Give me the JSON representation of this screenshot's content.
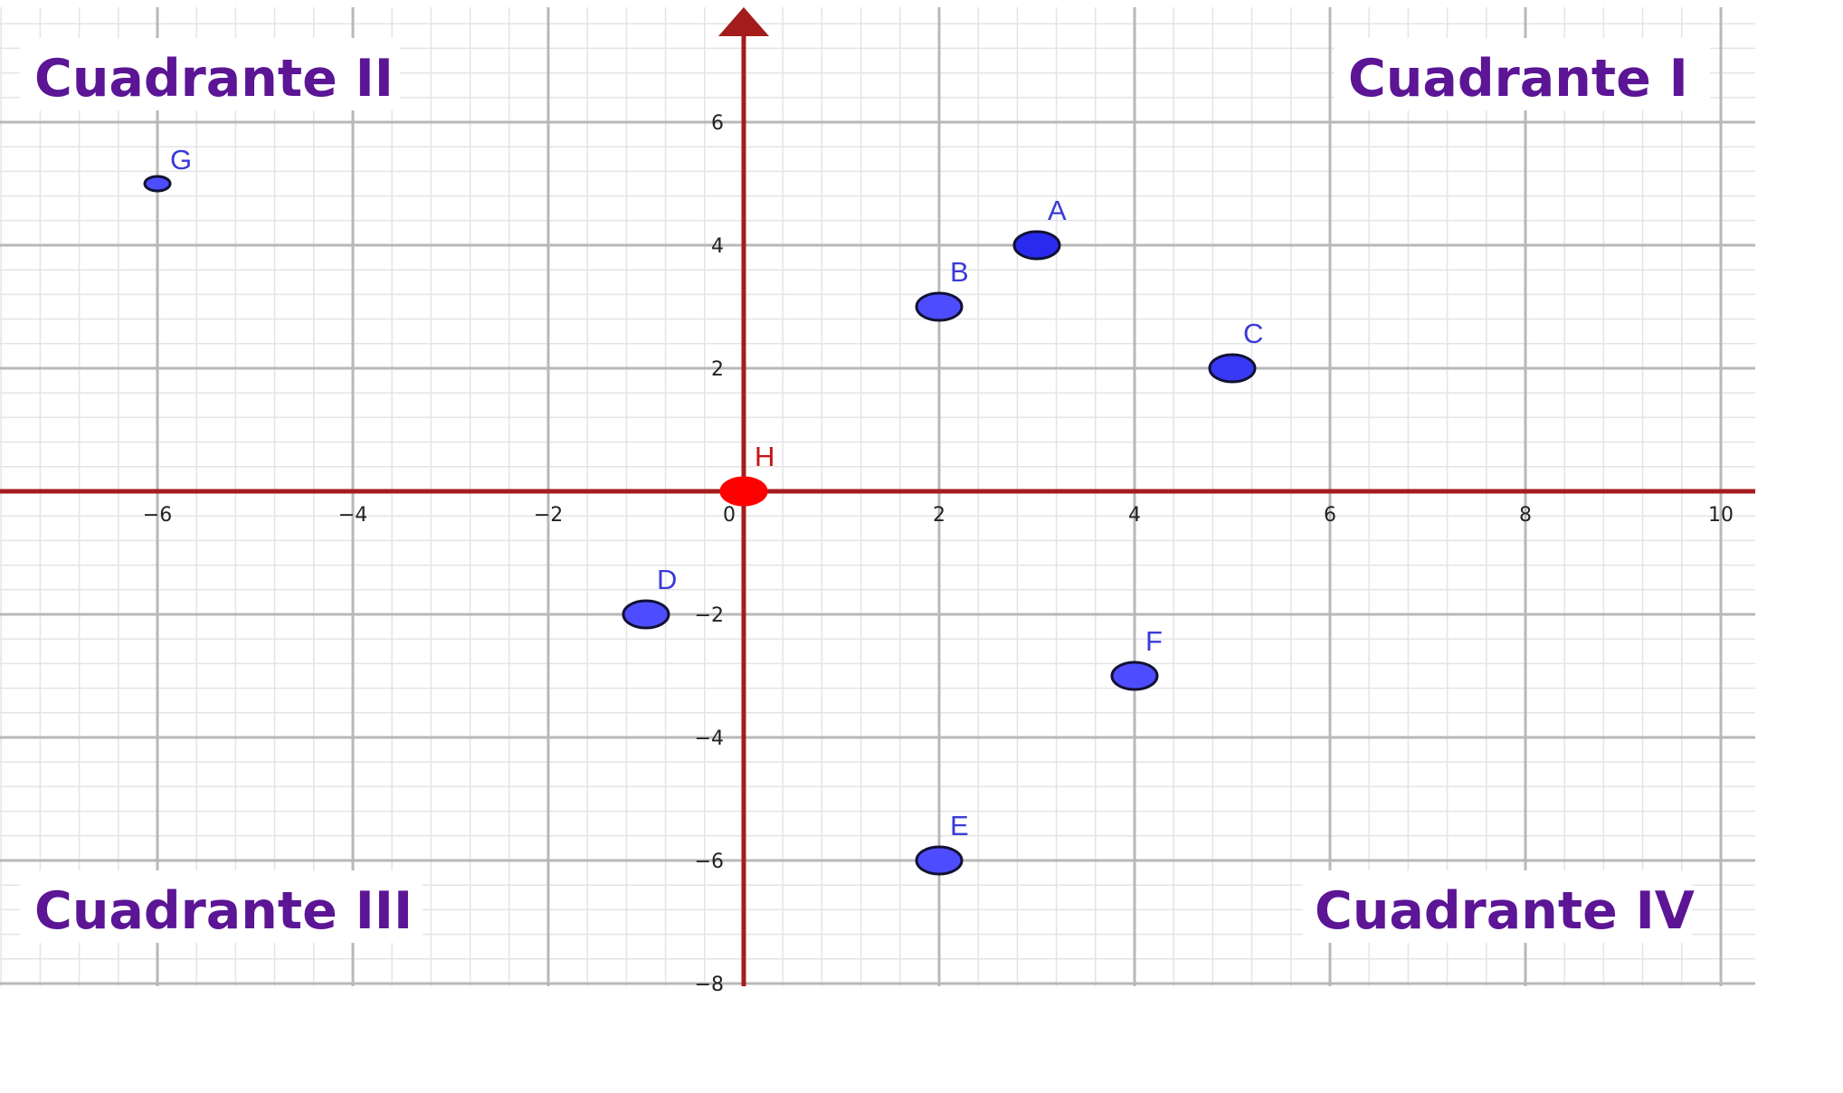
{
  "chart_data": {
    "type": "scatter",
    "title": "",
    "xlabel": "",
    "ylabel": "",
    "xlim": [
      -7.7,
      10.3
    ],
    "ylim": [
      -8.1,
      7.9
    ],
    "grid": true,
    "minor_grid": true,
    "x_ticks": [
      -6,
      -4,
      -2,
      0,
      2,
      4,
      6,
      8,
      10
    ],
    "y_ticks": [
      6,
      4,
      2,
      -2,
      -4,
      -6,
      -8
    ],
    "x_tick_labels": [
      "−6",
      "−4",
      "−2",
      "0",
      "2",
      "4",
      "6",
      "8",
      "10"
    ],
    "y_tick_labels": [
      "6",
      "4",
      "2",
      "−2",
      "−4",
      "−6",
      "−8"
    ],
    "points": [
      {
        "label": "A",
        "x": 3,
        "y": 4,
        "color": "#2a2aee"
      },
      {
        "label": "B",
        "x": 2,
        "y": 3,
        "color": "#4d4dff"
      },
      {
        "label": "C",
        "x": 5,
        "y": 2,
        "color": "#3838f5"
      },
      {
        "label": "D",
        "x": -1,
        "y": -2,
        "color": "#4d4dff"
      },
      {
        "label": "E",
        "x": 2,
        "y": -6,
        "color": "#4d4dff"
      },
      {
        "label": "F",
        "x": 4,
        "y": -3,
        "color": "#4d4dff"
      },
      {
        "label": "G",
        "x": -6,
        "y": 5,
        "color": "#4d4dff",
        "small": true
      },
      {
        "label": "H",
        "x": 0,
        "y": 0,
        "color": "#ff0000",
        "label_color": "#cc1111"
      }
    ],
    "quadrant_labels": {
      "q1": "Cuadrante  I",
      "q2": "Cuadrante  II",
      "q3": "Cuadrante  III",
      "q4": "Cuadrante  IV"
    },
    "colors": {
      "axis": "#a51c1c",
      "major_grid": "#b8b8b8",
      "minor_grid": "#e4e4e4",
      "quadrant_text": "#5b1595",
      "point_label": "#3a3ad8"
    }
  }
}
